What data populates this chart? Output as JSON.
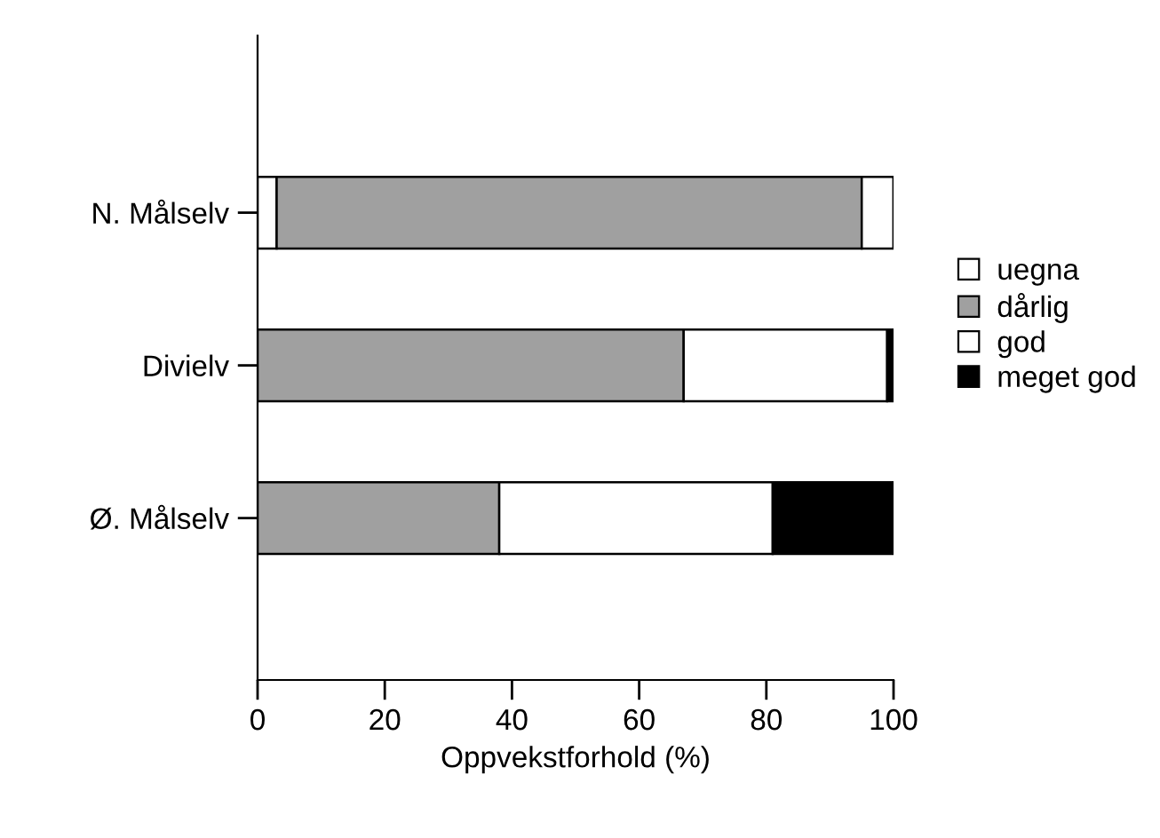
{
  "chart_data": {
    "type": "bar",
    "orientation": "horizontal",
    "stacked": true,
    "xlabel": "Oppvekstforhold (%)",
    "categories": [
      "N. Målselv",
      "Divielv",
      "Ø. Målselv"
    ],
    "series": [
      {
        "name": "uegna",
        "color": "#ffffff",
        "values": [
          3,
          0,
          0
        ]
      },
      {
        "name": "dårlig",
        "color": "#a0a0a0",
        "values": [
          92,
          67,
          38
        ]
      },
      {
        "name": "god",
        "color": "#ffffff",
        "values": [
          5,
          32,
          43
        ]
      },
      {
        "name": "meget god",
        "color": "#000000",
        "values": [
          0,
          1,
          19
        ]
      }
    ],
    "xlim": [
      0,
      100
    ],
    "xticks": [
      0,
      20,
      40,
      60,
      80,
      100
    ],
    "legend": "right",
    "grid": false
  }
}
